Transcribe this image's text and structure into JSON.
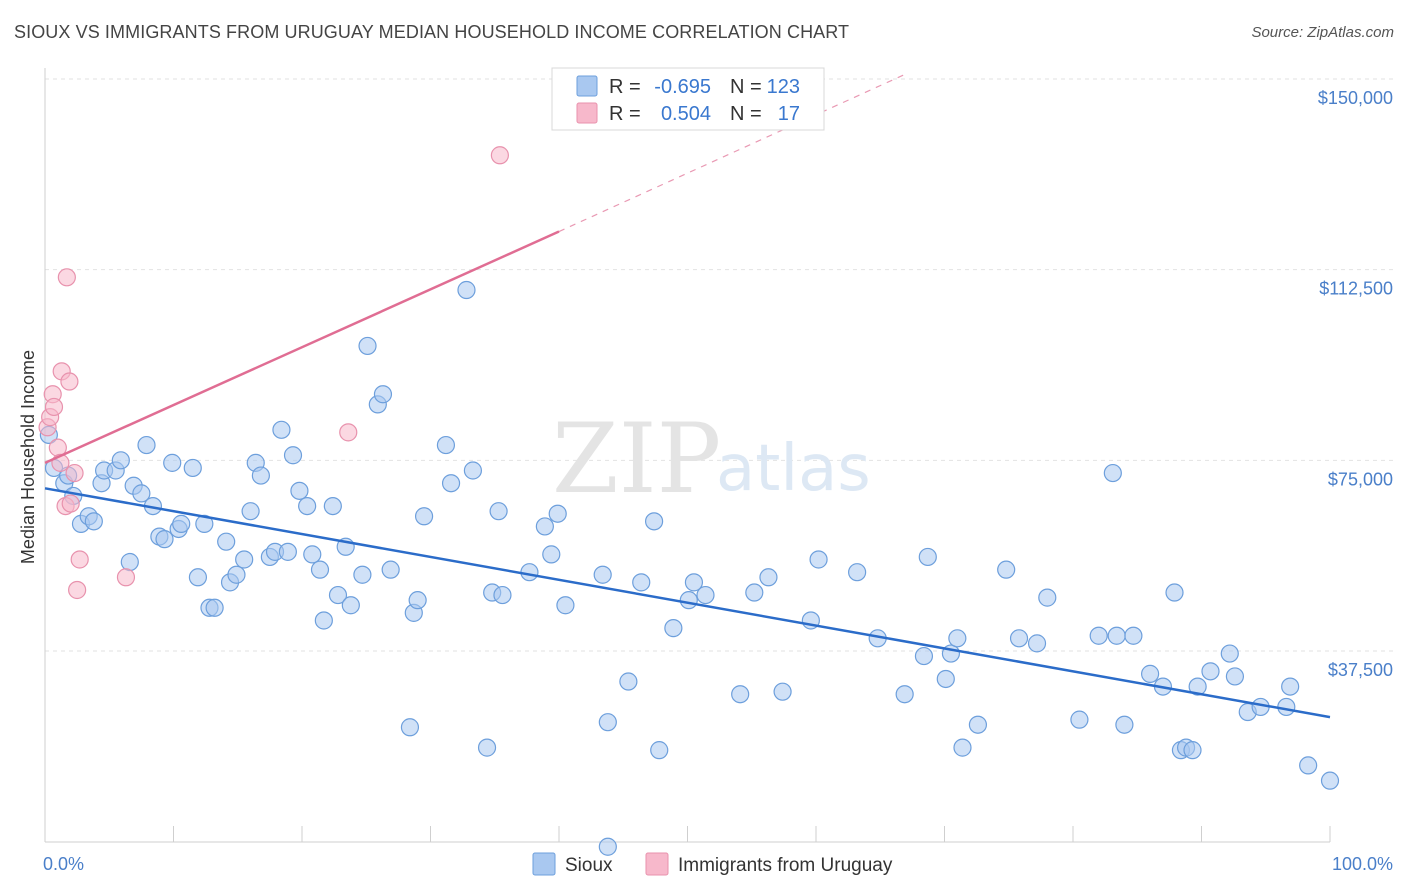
{
  "header": {
    "title": "SIOUX VS IMMIGRANTS FROM URUGUAY MEDIAN HOUSEHOLD INCOME CORRELATION CHART",
    "source": "Source: ZipAtlas.com"
  },
  "watermark": {
    "zip": "ZIP",
    "atlas": "atlas"
  },
  "legend": {
    "r_label": "R =",
    "n_label": "N =",
    "rows": [
      {
        "series": "Sioux",
        "r": "-0.695",
        "n": "123",
        "color": "#a9c8f0"
      },
      {
        "series": "Immigrants from Uruguay",
        "r": "0.504",
        "n": "17",
        "color": "#f7b8cb"
      }
    ]
  },
  "chart_data": {
    "type": "scatter",
    "ylabel": "Median Household Income",
    "xlim": [
      0,
      100
    ],
    "ylim": [
      0,
      157000
    ],
    "x_tick_labels": [
      "0.0%",
      "100.0%"
    ],
    "y_ticks": [
      {
        "value": 37500,
        "label": "$37,500"
      },
      {
        "value": 75000,
        "label": "$75,000"
      },
      {
        "value": 112500,
        "label": "$112,500"
      },
      {
        "value": 150000,
        "label": "$150,000"
      }
    ],
    "grid": "horizontal dashed",
    "legend_placement": "top-center",
    "series": [
      {
        "name": "Sioux",
        "color": "#a9c8f0",
        "stroke": "#6d9fdc",
        "trend": {
          "x": [
            0,
            100
          ],
          "y": [
            69500,
            24500
          ],
          "color": "#2b6cc9"
        },
        "points": [
          {
            "x": 0.3,
            "y": 80000
          },
          {
            "x": 0.7,
            "y": 73500
          },
          {
            "x": 1.5,
            "y": 70500
          },
          {
            "x": 1.8,
            "y": 72000
          },
          {
            "x": 2.2,
            "y": 68000
          },
          {
            "x": 2.8,
            "y": 62500
          },
          {
            "x": 3.4,
            "y": 64000
          },
          {
            "x": 3.8,
            "y": 63000
          },
          {
            "x": 4.4,
            "y": 70500
          },
          {
            "x": 4.6,
            "y": 73000
          },
          {
            "x": 5.5,
            "y": 73000
          },
          {
            "x": 5.9,
            "y": 75000
          },
          {
            "x": 6.6,
            "y": 55000
          },
          {
            "x": 6.9,
            "y": 70000
          },
          {
            "x": 7.5,
            "y": 68500
          },
          {
            "x": 7.9,
            "y": 78000
          },
          {
            "x": 8.4,
            "y": 66000
          },
          {
            "x": 8.9,
            "y": 60000
          },
          {
            "x": 9.3,
            "y": 59500
          },
          {
            "x": 9.9,
            "y": 74500
          },
          {
            "x": 10.4,
            "y": 61500
          },
          {
            "x": 10.6,
            "y": 62500
          },
          {
            "x": 11.5,
            "y": 73500
          },
          {
            "x": 11.9,
            "y": 52000
          },
          {
            "x": 12.4,
            "y": 62500
          },
          {
            "x": 12.8,
            "y": 46000
          },
          {
            "x": 13.2,
            "y": 46000
          },
          {
            "x": 14.1,
            "y": 59000
          },
          {
            "x": 14.4,
            "y": 51000
          },
          {
            "x": 14.9,
            "y": 52500
          },
          {
            "x": 15.5,
            "y": 55500
          },
          {
            "x": 16.0,
            "y": 65000
          },
          {
            "x": 16.4,
            "y": 74500
          },
          {
            "x": 16.8,
            "y": 72000
          },
          {
            "x": 17.5,
            "y": 56000
          },
          {
            "x": 17.9,
            "y": 57000
          },
          {
            "x": 18.4,
            "y": 81000
          },
          {
            "x": 18.9,
            "y": 57000
          },
          {
            "x": 19.3,
            "y": 76000
          },
          {
            "x": 19.8,
            "y": 69000
          },
          {
            "x": 20.4,
            "y": 66000
          },
          {
            "x": 20.8,
            "y": 56500
          },
          {
            "x": 21.4,
            "y": 53500
          },
          {
            "x": 21.7,
            "y": 43500
          },
          {
            "x": 22.4,
            "y": 66000
          },
          {
            "x": 22.8,
            "y": 48500
          },
          {
            "x": 23.4,
            "y": 58000
          },
          {
            "x": 23.8,
            "y": 46500
          },
          {
            "x": 24.7,
            "y": 52500
          },
          {
            "x": 25.1,
            "y": 97500
          },
          {
            "x": 25.9,
            "y": 86000
          },
          {
            "x": 26.3,
            "y": 88000
          },
          {
            "x": 26.9,
            "y": 53500
          },
          {
            "x": 28.4,
            "y": 22500
          },
          {
            "x": 28.7,
            "y": 45000
          },
          {
            "x": 29.0,
            "y": 47500
          },
          {
            "x": 29.5,
            "y": 64000
          },
          {
            "x": 31.2,
            "y": 78000
          },
          {
            "x": 31.6,
            "y": 70500
          },
          {
            "x": 32.8,
            "y": 108500
          },
          {
            "x": 33.3,
            "y": 73000
          },
          {
            "x": 34.4,
            "y": 18500
          },
          {
            "x": 34.8,
            "y": 49000
          },
          {
            "x": 35.3,
            "y": 65000
          },
          {
            "x": 35.6,
            "y": 48500
          },
          {
            "x": 37.7,
            "y": 53000
          },
          {
            "x": 38.9,
            "y": 62000
          },
          {
            "x": 39.4,
            "y": 56500
          },
          {
            "x": 39.9,
            "y": 64500
          },
          {
            "x": 40.5,
            "y": 46500
          },
          {
            "x": 43.4,
            "y": 52500
          },
          {
            "x": 43.8,
            "y": 23500
          },
          {
            "x": 43.8,
            "y": -1000
          },
          {
            "x": 46.4,
            "y": 51000
          },
          {
            "x": 45.4,
            "y": 31500
          },
          {
            "x": 47.4,
            "y": 63000
          },
          {
            "x": 47.8,
            "y": 18000
          },
          {
            "x": 48.9,
            "y": 42000
          },
          {
            "x": 50.1,
            "y": 47500
          },
          {
            "x": 50.5,
            "y": 51000
          },
          {
            "x": 51.4,
            "y": 48500
          },
          {
            "x": 54.1,
            "y": 29000
          },
          {
            "x": 55.2,
            "y": 49000
          },
          {
            "x": 56.3,
            "y": 52000
          },
          {
            "x": 57.4,
            "y": 29500
          },
          {
            "x": 59.6,
            "y": 43500
          },
          {
            "x": 60.2,
            "y": 55500
          },
          {
            "x": 63.2,
            "y": 53000
          },
          {
            "x": 64.8,
            "y": 40000
          },
          {
            "x": 66.9,
            "y": 29000
          },
          {
            "x": 68.4,
            "y": 36500
          },
          {
            "x": 68.7,
            "y": 56000
          },
          {
            "x": 70.5,
            "y": 37000
          },
          {
            "x": 70.1,
            "y": 32000
          },
          {
            "x": 71.0,
            "y": 40000
          },
          {
            "x": 71.4,
            "y": 18500
          },
          {
            "x": 72.6,
            "y": 23000
          },
          {
            "x": 74.8,
            "y": 53500
          },
          {
            "x": 75.8,
            "y": 40000
          },
          {
            "x": 77.2,
            "y": 39000
          },
          {
            "x": 78.0,
            "y": 48000
          },
          {
            "x": 80.5,
            "y": 24000
          },
          {
            "x": 82.0,
            "y": 40500
          },
          {
            "x": 83.1,
            "y": 72500
          },
          {
            "x": 83.4,
            "y": 40500
          },
          {
            "x": 84.0,
            "y": 23000
          },
          {
            "x": 84.7,
            "y": 40500
          },
          {
            "x": 86.0,
            "y": 33000
          },
          {
            "x": 87.0,
            "y": 30500
          },
          {
            "x": 87.9,
            "y": 49000
          },
          {
            "x": 88.4,
            "y": 18000
          },
          {
            "x": 88.8,
            "y": 18500
          },
          {
            "x": 89.3,
            "y": 18000
          },
          {
            "x": 89.7,
            "y": 30500
          },
          {
            "x": 90.7,
            "y": 33500
          },
          {
            "x": 92.2,
            "y": 37000
          },
          {
            "x": 92.6,
            "y": 32500
          },
          {
            "x": 93.6,
            "y": 25500
          },
          {
            "x": 94.6,
            "y": 26500
          },
          {
            "x": 96.6,
            "y": 26500
          },
          {
            "x": 96.9,
            "y": 30500
          },
          {
            "x": 98.3,
            "y": 15000
          },
          {
            "x": 100.0,
            "y": 12000
          }
        ]
      },
      {
        "name": "Immigrants from Uruguay",
        "color": "#f7b8cb",
        "stroke": "#e892ad",
        "trend": {
          "x": [
            0,
            40
          ],
          "y": [
            74500,
            120000
          ],
          "x_dashed_end": 67,
          "y_dashed_end": 151000,
          "color": "#e06d93"
        },
        "points": [
          {
            "x": 0.2,
            "y": 81500
          },
          {
            "x": 0.4,
            "y": 83500
          },
          {
            "x": 0.6,
            "y": 88000
          },
          {
            "x": 0.7,
            "y": 85500
          },
          {
            "x": 1.0,
            "y": 77500
          },
          {
            "x": 1.2,
            "y": 74500
          },
          {
            "x": 1.3,
            "y": 92500
          },
          {
            "x": 1.6,
            "y": 66000
          },
          {
            "x": 1.7,
            "y": 111000
          },
          {
            "x": 1.9,
            "y": 90500
          },
          {
            "x": 2.0,
            "y": 66500
          },
          {
            "x": 2.3,
            "y": 72500
          },
          {
            "x": 2.5,
            "y": 49500
          },
          {
            "x": 2.7,
            "y": 55500
          },
          {
            "x": 6.3,
            "y": 52000
          },
          {
            "x": 23.6,
            "y": 80500
          },
          {
            "x": 35.4,
            "y": 135000
          }
        ]
      }
    ]
  }
}
